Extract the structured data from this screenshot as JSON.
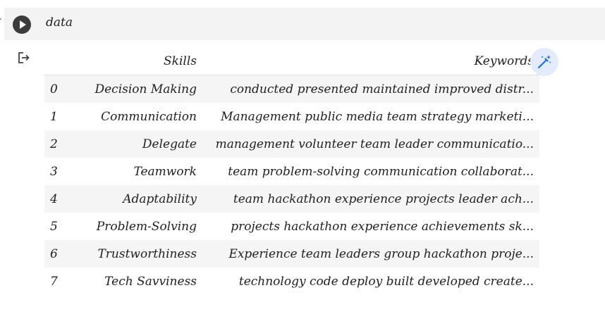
{
  "cell": {
    "code": "data",
    "run_icon": "play-icon",
    "output_icon": "output-arrow-icon",
    "magic_icon": "magic-wand-icon"
  },
  "table": {
    "columns": [
      "Skills",
      "Keywords"
    ],
    "rows": [
      {
        "index": "0",
        "skill": "Decision Making",
        "keywords": "conducted presented maintained improved distr..."
      },
      {
        "index": "1",
        "skill": "Communication",
        "keywords": "Management public media team strategy marketi..."
      },
      {
        "index": "2",
        "skill": "Delegate",
        "keywords": "management volunteer team leader communicatio..."
      },
      {
        "index": "3",
        "skill": "Teamwork",
        "keywords": "team problem-solving communication collaborat..."
      },
      {
        "index": "4",
        "skill": "Adaptability",
        "keywords": "team hackathon experience projects leader ach..."
      },
      {
        "index": "5",
        "skill": "Problem-Solving",
        "keywords": "projects hackathon experience achievements sk..."
      },
      {
        "index": "6",
        "skill": "Trustworthiness",
        "keywords": "Experience team leaders group hackathon proje..."
      },
      {
        "index": "7",
        "skill": "Tech Savviness",
        "keywords": "technology code deploy built developed create..."
      }
    ]
  },
  "colors": {
    "input_bg": "#f3f3f3",
    "row_stripe": "#f5f5f5",
    "magic_bg": "#e3ebfc",
    "magic_accent": "#1a73e8"
  }
}
